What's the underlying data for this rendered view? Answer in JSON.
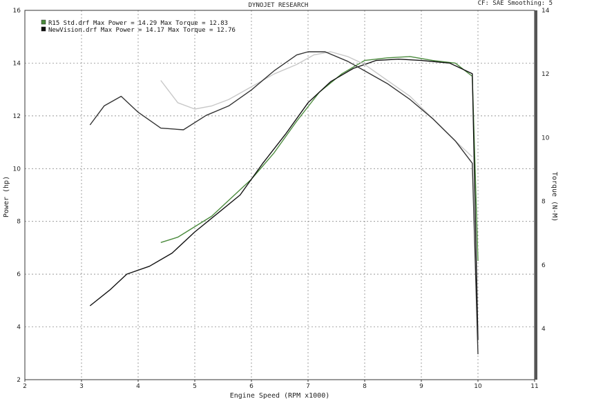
{
  "header": {
    "title": "DYNOJET RESEARCH",
    "settings": "CF: SAE   Smoothing: 5"
  },
  "chart_data": {
    "type": "line",
    "title": "DYNOJET RESEARCH",
    "xlabel": "Engine Speed (RPM x1000)",
    "ylabel_left": "Power (hp)",
    "ylabel_right": "Torque (N-M)",
    "xlim": [
      2,
      11
    ],
    "ylim_left": [
      2,
      16
    ],
    "ylim_right": [
      2.4,
      14
    ],
    "x_ticks": [
      "2",
      "3",
      "4",
      "5",
      "6",
      "7",
      "8",
      "9",
      "10",
      "11"
    ],
    "y_ticks_left": [
      "2",
      "4",
      "6",
      "8",
      "10",
      "12",
      "14",
      "16"
    ],
    "y_ticks_right": [
      "4",
      "6",
      "8",
      "10",
      "12",
      "14"
    ],
    "grid": true,
    "legend": [
      {
        "text": "R15 Std.drf Max Power = 14.29      Max Torque = 12.83",
        "color": "#4a8a3c"
      },
      {
        "text": "NewVision.drf Max Power = 14.17      Max Torque = 12.76",
        "color": "#111111"
      }
    ],
    "series": [
      {
        "name": "R15 Std.drf Power",
        "axis": "left",
        "color": "#4a8a3c",
        "x": [
          4.4,
          4.7,
          5.0,
          5.3,
          5.6,
          6.0,
          6.4,
          6.8,
          7.2,
          7.6,
          8.0,
          8.4,
          8.8,
          9.2,
          9.6,
          9.9,
          10.0
        ],
        "y": [
          7.2,
          7.4,
          7.8,
          8.2,
          8.8,
          9.6,
          10.6,
          11.8,
          12.9,
          13.6,
          14.1,
          14.2,
          14.25,
          14.1,
          14.0,
          13.5,
          6.5
        ]
      },
      {
        "name": "NewVision.drf Power",
        "axis": "left",
        "color": "#111111",
        "x": [
          3.15,
          3.5,
          3.8,
          4.2,
          4.6,
          5.0,
          5.4,
          5.8,
          6.2,
          6.6,
          7.0,
          7.4,
          7.8,
          8.2,
          8.6,
          9.0,
          9.5,
          9.9,
          10.0
        ],
        "y": [
          4.8,
          5.4,
          6.0,
          6.3,
          6.8,
          7.6,
          8.3,
          9.0,
          10.2,
          11.3,
          12.5,
          13.3,
          13.8,
          14.1,
          14.15,
          14.1,
          14.0,
          13.6,
          3.5
        ]
      },
      {
        "name": "R15 Std.drf Torque",
        "axis": "right",
        "color": "#c8c8c8",
        "x": [
          4.4,
          4.7,
          5.0,
          5.3,
          5.6,
          6.0,
          6.4,
          6.8,
          7.1,
          7.4,
          7.7,
          8.0,
          8.4,
          8.8,
          9.2,
          9.6,
          9.9
        ],
        "y": [
          11.8,
          11.1,
          10.9,
          11.0,
          11.2,
          11.6,
          12.0,
          12.3,
          12.6,
          12.7,
          12.55,
          12.3,
          11.8,
          11.3,
          10.6,
          9.9,
          9.4
        ]
      },
      {
        "name": "NewVision.drf Torque",
        "axis": "right",
        "color": "#333333",
        "x": [
          3.15,
          3.4,
          3.7,
          4.0,
          4.4,
          4.8,
          5.2,
          5.6,
          6.0,
          6.4,
          6.8,
          7.0,
          7.3,
          7.7,
          8.0,
          8.4,
          8.8,
          9.2,
          9.6,
          9.9,
          10.0
        ],
        "y": [
          10.4,
          11.0,
          11.3,
          10.8,
          10.3,
          10.25,
          10.7,
          11.0,
          11.5,
          12.1,
          12.6,
          12.7,
          12.7,
          12.4,
          12.1,
          11.7,
          11.2,
          10.6,
          9.9,
          9.2,
          3.2
        ]
      }
    ]
  }
}
